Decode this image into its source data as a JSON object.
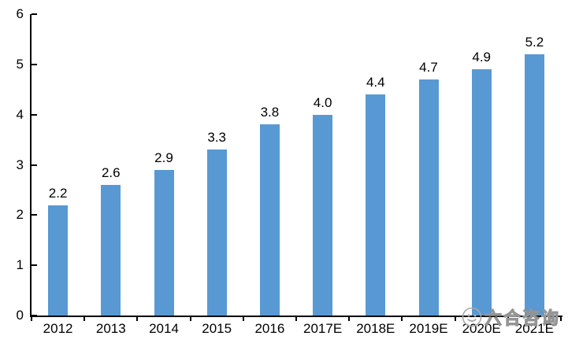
{
  "chart_data": {
    "type": "bar",
    "title": "",
    "xlabel": "",
    "ylabel": "",
    "categories": [
      "2012",
      "2013",
      "2014",
      "2015",
      "2016",
      "2017E",
      "2018E",
      "2019E",
      "2020E",
      "2021E"
    ],
    "values": [
      2.2,
      2.6,
      2.9,
      3.3,
      3.8,
      4.0,
      4.4,
      4.7,
      4.9,
      5.2
    ],
    "value_labels": [
      "2.2",
      "2.6",
      "2.9",
      "3.3",
      "3.8",
      "4.0",
      "4.4",
      "4.7",
      "4.9",
      "5.2"
    ],
    "ylim": [
      0,
      6
    ],
    "y_ticks": [
      "0",
      "1",
      "2",
      "3",
      "4",
      "5",
      "6"
    ],
    "grid": false,
    "legend_position": "none"
  },
  "watermark": {
    "text": "六合咨询",
    "icon": "face-logo-icon"
  },
  "colors": {
    "bar": "#5899D3",
    "axis": "#000000",
    "text": "#000000",
    "watermark": "#949494",
    "background": "#ffffff"
  }
}
